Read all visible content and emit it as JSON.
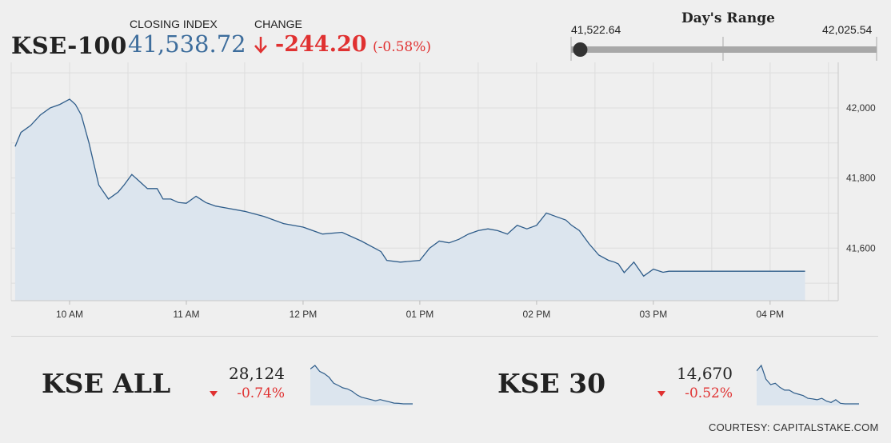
{
  "header": {
    "title": "KSE-100",
    "closing_label": "CLOSING INDEX",
    "closing_value": "41,538.72",
    "change_label": "CHANGE",
    "change_value": "-244.20",
    "change_pct": "(-0.58%)"
  },
  "range": {
    "title": "Day's Range",
    "low": "41,522.64",
    "high": "42,025.54",
    "position": 0.03
  },
  "chart_data": [
    {
      "type": "area",
      "title": "",
      "xlabel": "",
      "ylabel": "",
      "x_ticks": [
        "10 AM",
        "11 AM",
        "12 PM",
        "01 PM",
        "02 PM",
        "03 PM",
        "04 PM"
      ],
      "y_ticks": [
        41600,
        41800,
        42000
      ],
      "ylim": [
        41450,
        42130
      ],
      "grid": true,
      "series": [
        {
          "x": [
            "09:32",
            "09:35",
            "09:40",
            "09:45",
            "09:50",
            "09:55",
            "10:00",
            "10:03",
            "10:06",
            "10:10",
            "10:15",
            "10:20",
            "10:25",
            "10:28",
            "10:32",
            "10:36",
            "10:40",
            "10:45",
            "10:48",
            "10:52",
            "10:56",
            "11:00",
            "11:05",
            "11:10",
            "11:15",
            "11:20",
            "11:30",
            "11:40",
            "11:50",
            "12:00",
            "12:10",
            "12:20",
            "12:30",
            "12:40",
            "12:43",
            "12:50",
            "13:00",
            "13:05",
            "13:10",
            "13:15",
            "13:20",
            "13:25",
            "13:30",
            "13:35",
            "13:40",
            "13:45",
            "13:50",
            "13:55",
            "14:00",
            "14:05",
            "14:10",
            "14:15",
            "14:18",
            "14:22",
            "14:27",
            "14:32",
            "14:37",
            "14:40",
            "14:42",
            "14:45",
            "14:50",
            "14:55",
            "15:00",
            "15:05",
            "15:08",
            "15:12",
            "15:15",
            "15:17",
            "15:20",
            "15:23",
            "15:25",
            "15:28",
            "15:30",
            "15:32",
            "15:35",
            "15:40",
            "15:50",
            "16:00",
            "16:10",
            "16:18"
          ],
          "y": [
            41890,
            41930,
            41950,
            41980,
            42000,
            42010,
            42025,
            42010,
            41980,
            41900,
            41780,
            41740,
            41760,
            41780,
            41810,
            41790,
            41770,
            41770,
            41740,
            41740,
            41730,
            41728,
            41748,
            41730,
            41720,
            41715,
            41705,
            41690,
            41670,
            41660,
            41640,
            41645,
            41620,
            41590,
            41565,
            41560,
            41565,
            41600,
            41620,
            41615,
            41625,
            41640,
            41650,
            41655,
            41650,
            41640,
            41665,
            41655,
            41665,
            41700,
            41690,
            41680,
            41665,
            41650,
            41612,
            41580,
            41565,
            41560,
            41555,
            41530,
            41560,
            41520,
            41540,
            41531,
            41534,
            41534,
            41534,
            41534,
            41534,
            41534,
            41534,
            41534,
            41534,
            41534,
            41534,
            41534,
            41534,
            41534,
            41534,
            41534
          ]
        }
      ]
    },
    {
      "type": "area",
      "title": "",
      "xlabel": "",
      "ylabel": "",
      "x_ticks": [],
      "series": [
        {
          "values": [
            28420,
            28450,
            28400,
            28380,
            28350,
            28300,
            28280,
            28260,
            28250,
            28230,
            28200,
            28180,
            28170,
            28160,
            28150,
            28160,
            28150,
            28140,
            28130,
            28128,
            28124,
            28124,
            28124
          ]
        }
      ]
    },
    {
      "type": "area",
      "title": "",
      "xlabel": "",
      "ylabel": "",
      "x_ticks": [],
      "series": [
        {
          "values": [
            14790,
            14810,
            14760,
            14740,
            14745,
            14730,
            14720,
            14720,
            14710,
            14705,
            14700,
            14690,
            14688,
            14685,
            14690,
            14680,
            14675,
            14685,
            14672,
            14670,
            14670,
            14670,
            14670
          ]
        }
      ]
    }
  ],
  "kse_all": {
    "name": "KSE ALL",
    "value": "28,124",
    "change": "-0.74%"
  },
  "kse_30": {
    "name": "KSE 30",
    "value": "14,670",
    "change": "-0.52%"
  },
  "courtesy": "COURTESY: CAPITALSTAKE.COM",
  "colors": {
    "line": "#2f5d8a",
    "fill": "#dce5ee",
    "down": "#e03131",
    "closing": "#3d6d9c"
  }
}
